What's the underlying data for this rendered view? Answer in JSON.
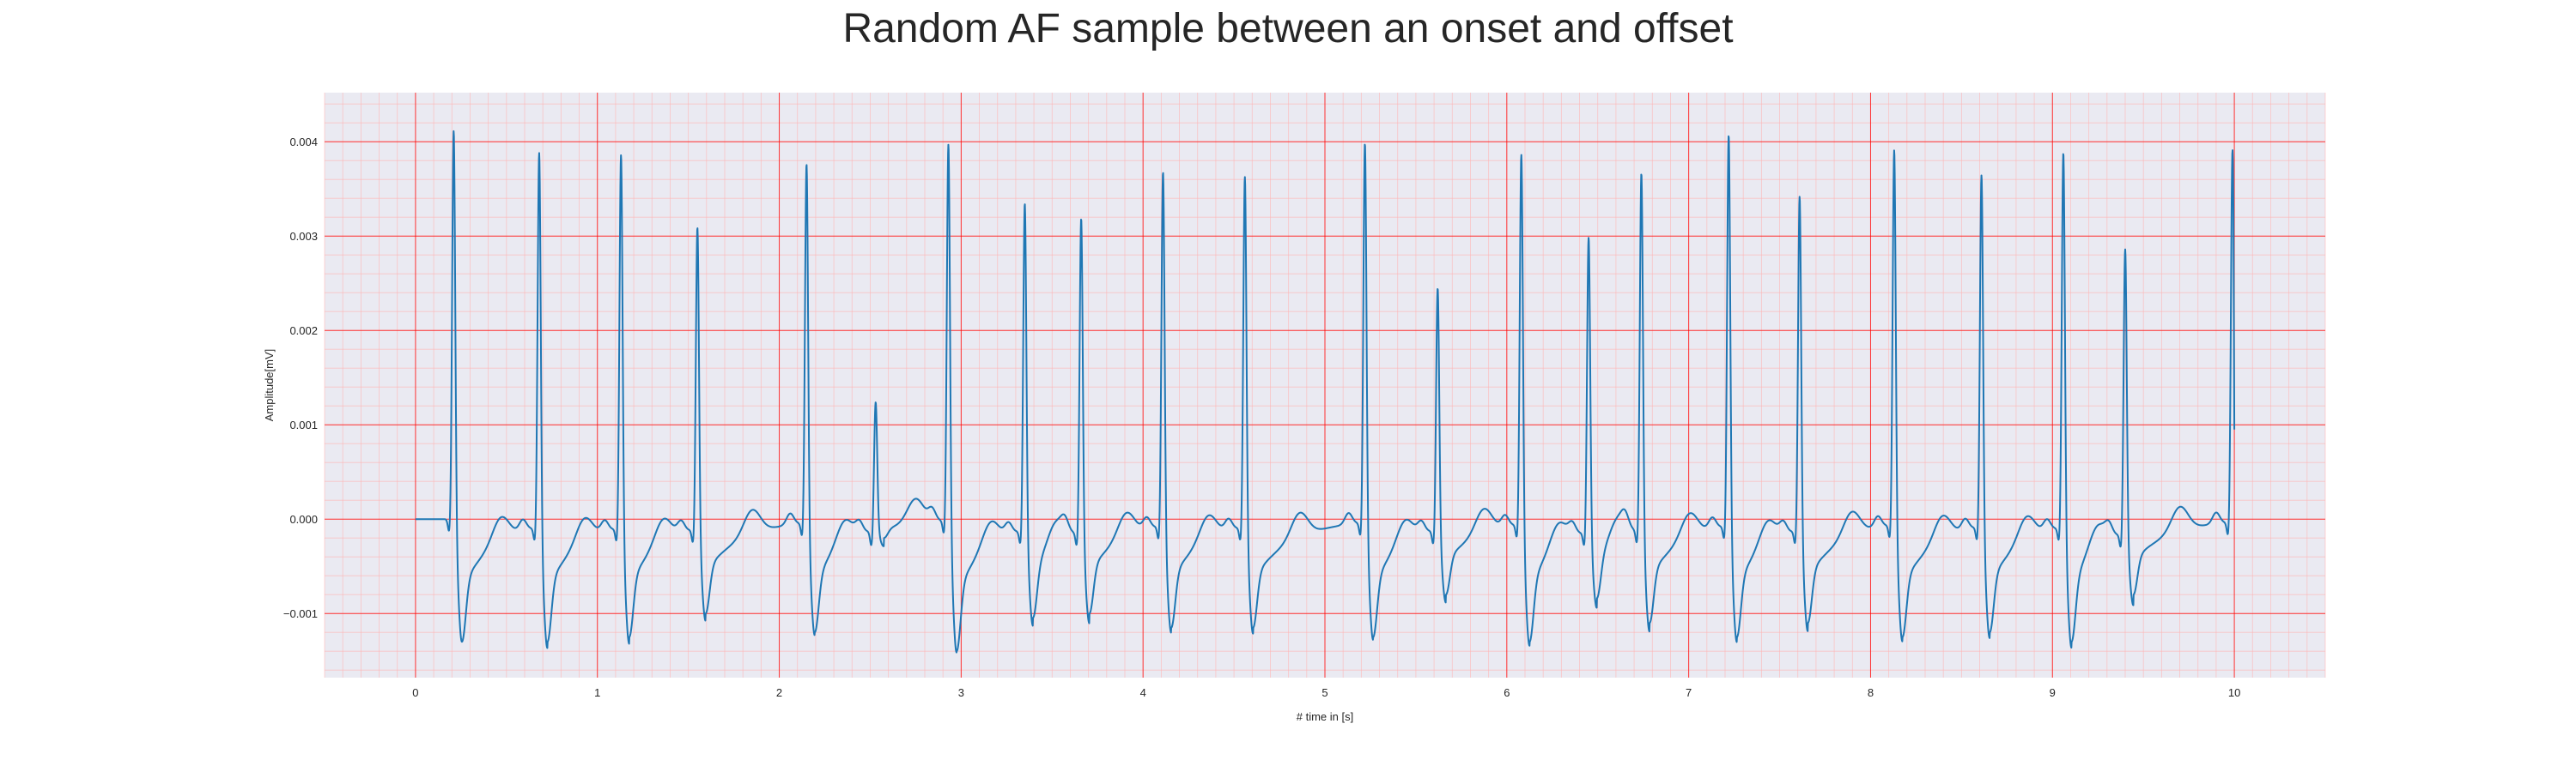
{
  "chart_data": {
    "type": "line",
    "title": "Random AF sample between an onset and offset",
    "xlabel": "# time in [s]",
    "ylabel": "Amplitude[mV]",
    "xlim": [
      -0.5,
      10.5
    ],
    "ylim": [
      -0.00168,
      0.00452
    ],
    "xticks": [
      0,
      1,
      2,
      3,
      4,
      5,
      6,
      7,
      8,
      9,
      10
    ],
    "yticks": [
      -0.001,
      0.0,
      0.001,
      0.002,
      0.003,
      0.004
    ],
    "ytick_labels": [
      "−0.001",
      "0.000",
      "0.001",
      "0.002",
      "0.003",
      "0.004"
    ],
    "grid": true,
    "grid_major_color": "#ff0000",
    "grid_minor_color": "#ffb3b3",
    "background_color": "#eaeaf2",
    "line_color": "#1f77b4",
    "series": [
      {
        "beats": [
          {
            "t": 0.21,
            "peak": 0.0042,
            "trough": -0.0013
          },
          {
            "t": 0.68,
            "peak": 0.00405,
            "trough": -0.0013
          },
          {
            "t": 1.13,
            "peak": 0.00403,
            "trough": -0.00125
          },
          {
            "t": 1.55,
            "peak": 0.00325,
            "trough": -0.001
          },
          {
            "t": 2.15,
            "peak": 0.00388,
            "trough": -0.0012
          },
          {
            "t": 2.53,
            "peak": 0.00135,
            "trough": -0.0002
          },
          {
            "t": 2.93,
            "peak": 0.00408,
            "trough": -0.0014
          },
          {
            "t": 3.35,
            "peak": 0.00352,
            "trough": -0.00105
          },
          {
            "t": 3.66,
            "peak": 0.00338,
            "trough": -0.001
          },
          {
            "t": 4.11,
            "peak": 0.00382,
            "trough": -0.00115
          },
          {
            "t": 4.56,
            "peak": 0.00378,
            "trough": -0.00115
          },
          {
            "t": 5.22,
            "peak": 0.0041,
            "trough": -0.00125
          },
          {
            "t": 5.62,
            "peak": 0.0026,
            "trough": -0.0008
          },
          {
            "t": 6.08,
            "peak": 0.004,
            "trough": -0.0013
          },
          {
            "t": 6.45,
            "peak": 0.00316,
            "trough": -0.00085
          },
          {
            "t": 6.74,
            "peak": 0.00385,
            "trough": -0.0011
          },
          {
            "t": 7.22,
            "peak": 0.00422,
            "trough": -0.00125
          },
          {
            "t": 7.61,
            "peak": 0.0036,
            "trough": -0.0011
          },
          {
            "t": 8.13,
            "peak": 0.00405,
            "trough": -0.00125
          },
          {
            "t": 8.61,
            "peak": 0.0038,
            "trough": -0.0012
          },
          {
            "t": 9.06,
            "peak": 0.00405,
            "trough": -0.0013
          },
          {
            "t": 9.4,
            "peak": 0.00305,
            "trough": -0.0008
          },
          {
            "t": 9.99,
            "peak": 0.00393,
            "trough": 0.0
          }
        ],
        "end_value": 0.00095,
        "t_start": 0.0,
        "t_end": 10.0
      }
    ]
  }
}
